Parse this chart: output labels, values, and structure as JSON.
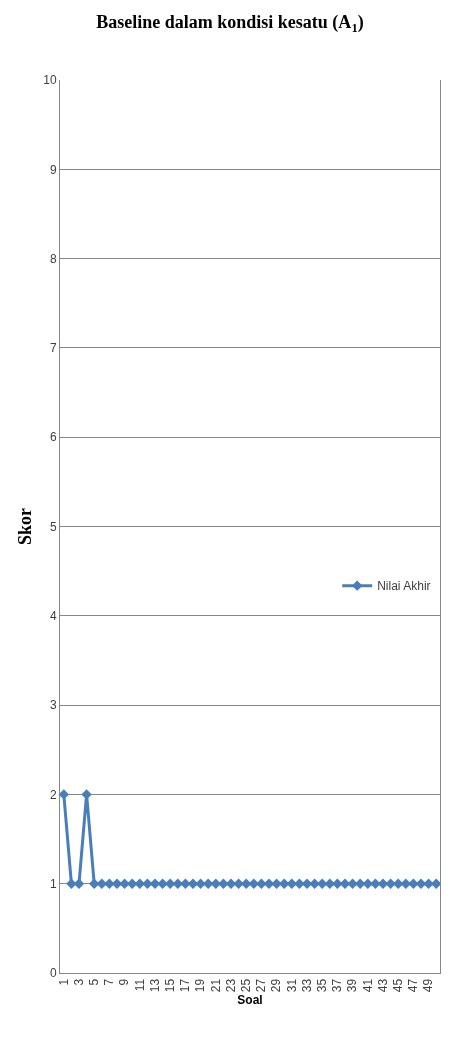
{
  "chart_data": {
    "type": "line",
    "title": "Baseline dalam kondisi kesatu (A$_{1}$)",
    "xlabel": "Soal",
    "ylabel": "Skor",
    "categories": [
      "1",
      null,
      "3",
      null,
      "5",
      null,
      "7",
      null,
      "9",
      null,
      "11",
      null,
      "13",
      null,
      "15",
      null,
      "17",
      null,
      "19",
      null,
      "21",
      null,
      "23",
      null,
      "25",
      null,
      "27",
      null,
      "29",
      null,
      "31",
      null,
      "33",
      null,
      "35",
      null,
      "37",
      null,
      "39",
      null,
      "41",
      null,
      "43",
      null,
      "45",
      null,
      "47",
      null,
      "49",
      null
    ],
    "series": [
      {
        "name": "Nilai Akhir",
        "color": "#4a7ebb",
        "values": [
          2,
          1,
          1,
          2,
          1,
          1,
          1,
          1,
          1,
          1,
          1,
          1,
          1,
          1,
          1,
          1,
          1,
          1,
          1,
          1,
          1,
          1,
          1,
          1,
          1,
          1,
          1,
          1,
          1,
          1,
          1,
          1,
          1,
          1,
          1,
          1,
          1,
          1,
          1,
          1,
          1,
          1,
          1,
          1,
          1,
          1,
          1,
          1,
          1,
          1
        ]
      }
    ],
    "ylim": [
      0,
      10
    ],
    "yticks": [
      0,
      1,
      2,
      3,
      4,
      5,
      6,
      7,
      8,
      9,
      10
    ],
    "grid": "y",
    "legend": "right",
    "marker": "diamond",
    "line_style": "solid"
  }
}
